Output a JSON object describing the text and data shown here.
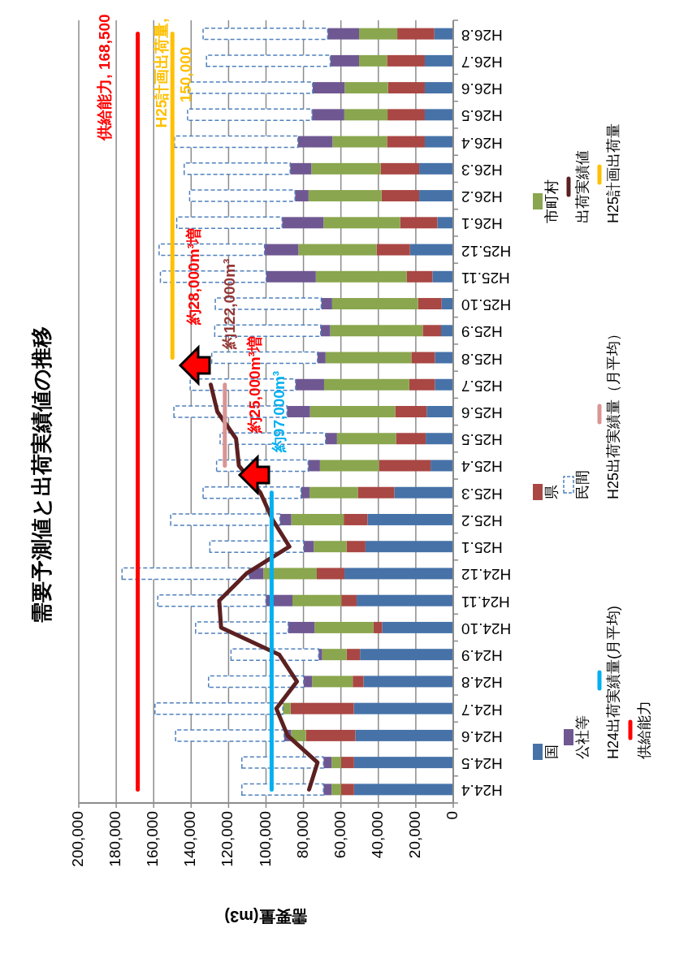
{
  "chart_data": {
    "type": "bar",
    "stacked": true,
    "orientation": "horizontal",
    "title": "需要予測値と出荷実績値の推移",
    "xlabel": "需要量(m3)",
    "categories": [
      "H26.8",
      "H26.7",
      "H26.6",
      "H26.5",
      "H26.4",
      "H26.3",
      "H26.2",
      "H26.1",
      "H25.12",
      "H25.11",
      "H25.10",
      "H25.9",
      "H25.8",
      "H25.7",
      "H25.6",
      "H25.5",
      "H25.4",
      "H25.3",
      "H25.2",
      "H25.1",
      "H24.12",
      "H24.11",
      "H24.10",
      "H24.9",
      "H24.8",
      "H24.7",
      "H24.6",
      "H24.5",
      "H24.4"
    ],
    "xlim": [
      200000,
      0
    ],
    "xticks": [
      0,
      {
        "value": 20000,
        "label": "20,000"
      },
      {
        "value": 40000,
        "label": "40,000"
      },
      {
        "value": 60000,
        "label": "60,000"
      },
      {
        "value": 80000,
        "label": "80,000"
      },
      {
        "value": 100000,
        "label": "100,000"
      },
      {
        "value": 120000,
        "label": "120,000"
      },
      {
        "value": 140000,
        "label": "140,000"
      },
      {
        "value": 160000,
        "label": "160,000"
      },
      {
        "value": 180000,
        "label": "180,000"
      },
      {
        "value": 200000,
        "label": "200,000"
      }
    ],
    "grid": "x",
    "legend": "right",
    "series": [
      {
        "name": "国",
        "color": "#4672a8",
        "values": [
          10100,
          15200,
          15200,
          15200,
          15200,
          18200,
          18200,
          8500,
          23100,
          11100,
          6200,
          6500,
          9800,
          9800,
          14200,
          14700,
          12100,
          31500,
          45800,
          46900,
          58100,
          51600,
          38000,
          49800,
          47900,
          53100,
          52300,
          53000,
          53000
        ]
      },
      {
        "name": "県",
        "color": "#a94744",
        "values": [
          19800,
          20200,
          19700,
          19900,
          20200,
          20500,
          20100,
          19800,
          17900,
          13700,
          12600,
          9800,
          12600,
          13700,
          16800,
          15900,
          27600,
          19500,
          12700,
          10100,
          14800,
          8200,
          4600,
          7200,
          5800,
          33800,
          26400,
          6900,
          6900
        ]
      },
      {
        "name": "市町村",
        "color": "#8aa64e",
        "values": [
          20400,
          14900,
          23100,
          23100,
          29100,
          37100,
          39000,
          41000,
          41700,
          48600,
          45900,
          49400,
          45800,
          45500,
          45500,
          31500,
          31500,
          25800,
          28000,
          17500,
          28500,
          26100,
          31500,
          13000,
          21700,
          4100,
          7900,
          5100,
          5100
        ]
      },
      {
        "name": "公社等",
        "color": "#6f5892",
        "values": [
          16800,
          15400,
          17100,
          17200,
          18500,
          11300,
          7200,
          22100,
          18100,
          26500,
          5800,
          5100,
          4300,
          15200,
          12300,
          6100,
          6300,
          4500,
          6100,
          5400,
          7600,
          14200,
          14000,
          1900,
          4500,
          0,
          3700,
          4300,
          4300
        ]
      },
      {
        "name": "民間",
        "color": "#4f81bd",
        "line_style": "dashed",
        "values": [
          66500,
          66100,
          66400,
          66500,
          65900,
          56600,
          56300,
          56300,
          56300,
          56500,
          56600,
          56600,
          56500,
          56300,
          60400,
          56300,
          48900,
          52300,
          58300,
          50100,
          67900,
          57700,
          49500,
          46800,
          50800,
          68300,
          58000,
          43600,
          43600
        ]
      },
      {
        "name": "出荷実績値",
        "type": "line",
        "color": "#5c2020",
        "values": [
          null,
          null,
          null,
          null,
          null,
          null,
          null,
          null,
          null,
          null,
          null,
          null,
          null,
          129500,
          126000,
          116000,
          114500,
          103000,
          96500,
          87500,
          110500,
          125000,
          124000,
          93000,
          83500,
          94500,
          88500,
          72500,
          77000
        ]
      },
      {
        "name": "H24出荷実績量(月平均)",
        "type": "line",
        "color": "#00b0f0",
        "values": [
          null,
          null,
          null,
          null,
          null,
          null,
          null,
          null,
          null,
          null,
          null,
          null,
          null,
          null,
          null,
          null,
          null,
          97000,
          97000,
          97000,
          97000,
          97000,
          97000,
          97000,
          97000,
          97000,
          97000,
          97000,
          97000
        ]
      },
      {
        "name": "H25出荷実績量（月平均）",
        "type": "line",
        "color": "#d99594",
        "values": [
          null,
          null,
          null,
          null,
          null,
          null,
          null,
          null,
          null,
          null,
          null,
          null,
          null,
          122000,
          122000,
          122000,
          122000,
          null,
          null,
          null,
          null,
          null,
          null,
          null,
          null,
          null,
          null,
          null,
          null
        ]
      },
      {
        "name": "H25計画出荷量",
        "type": "line",
        "color": "#ffc000",
        "values": [
          150000,
          150000,
          150000,
          150000,
          150000,
          150000,
          150000,
          150000,
          150000,
          150000,
          150000,
          150000,
          150000,
          null,
          null,
          null,
          null,
          null,
          null,
          null,
          null,
          null,
          null,
          null,
          null,
          null,
          null,
          null,
          null
        ]
      },
      {
        "name": "供給能力",
        "type": "line",
        "color": "#ff0000",
        "values": [
          168500,
          168500,
          168500,
          168500,
          168500,
          168500,
          168500,
          168500,
          168500,
          168500,
          168500,
          168500,
          168500,
          168500,
          168500,
          168500,
          168500,
          168500,
          168500,
          168500,
          168500,
          168500,
          168500,
          168500,
          168500,
          168500,
          168500,
          168500,
          168500
        ]
      }
    ],
    "annotations": [
      "供給能力, 168,500",
      "H25計画出荷量,",
      "150,000",
      {
        "text": "約28,000m³増",
        "y": "H25.11",
        "x": 138000
      },
      {
        "text": "約122,000m³",
        "y": "H25.10",
        "x": 118700
      },
      {
        "text": "約25,000m³増",
        "y": "H25.7",
        "x": 105600
      },
      {
        "text": "約97,000m³",
        "y": "H25.6",
        "x": 92600
      }
    ]
  }
}
